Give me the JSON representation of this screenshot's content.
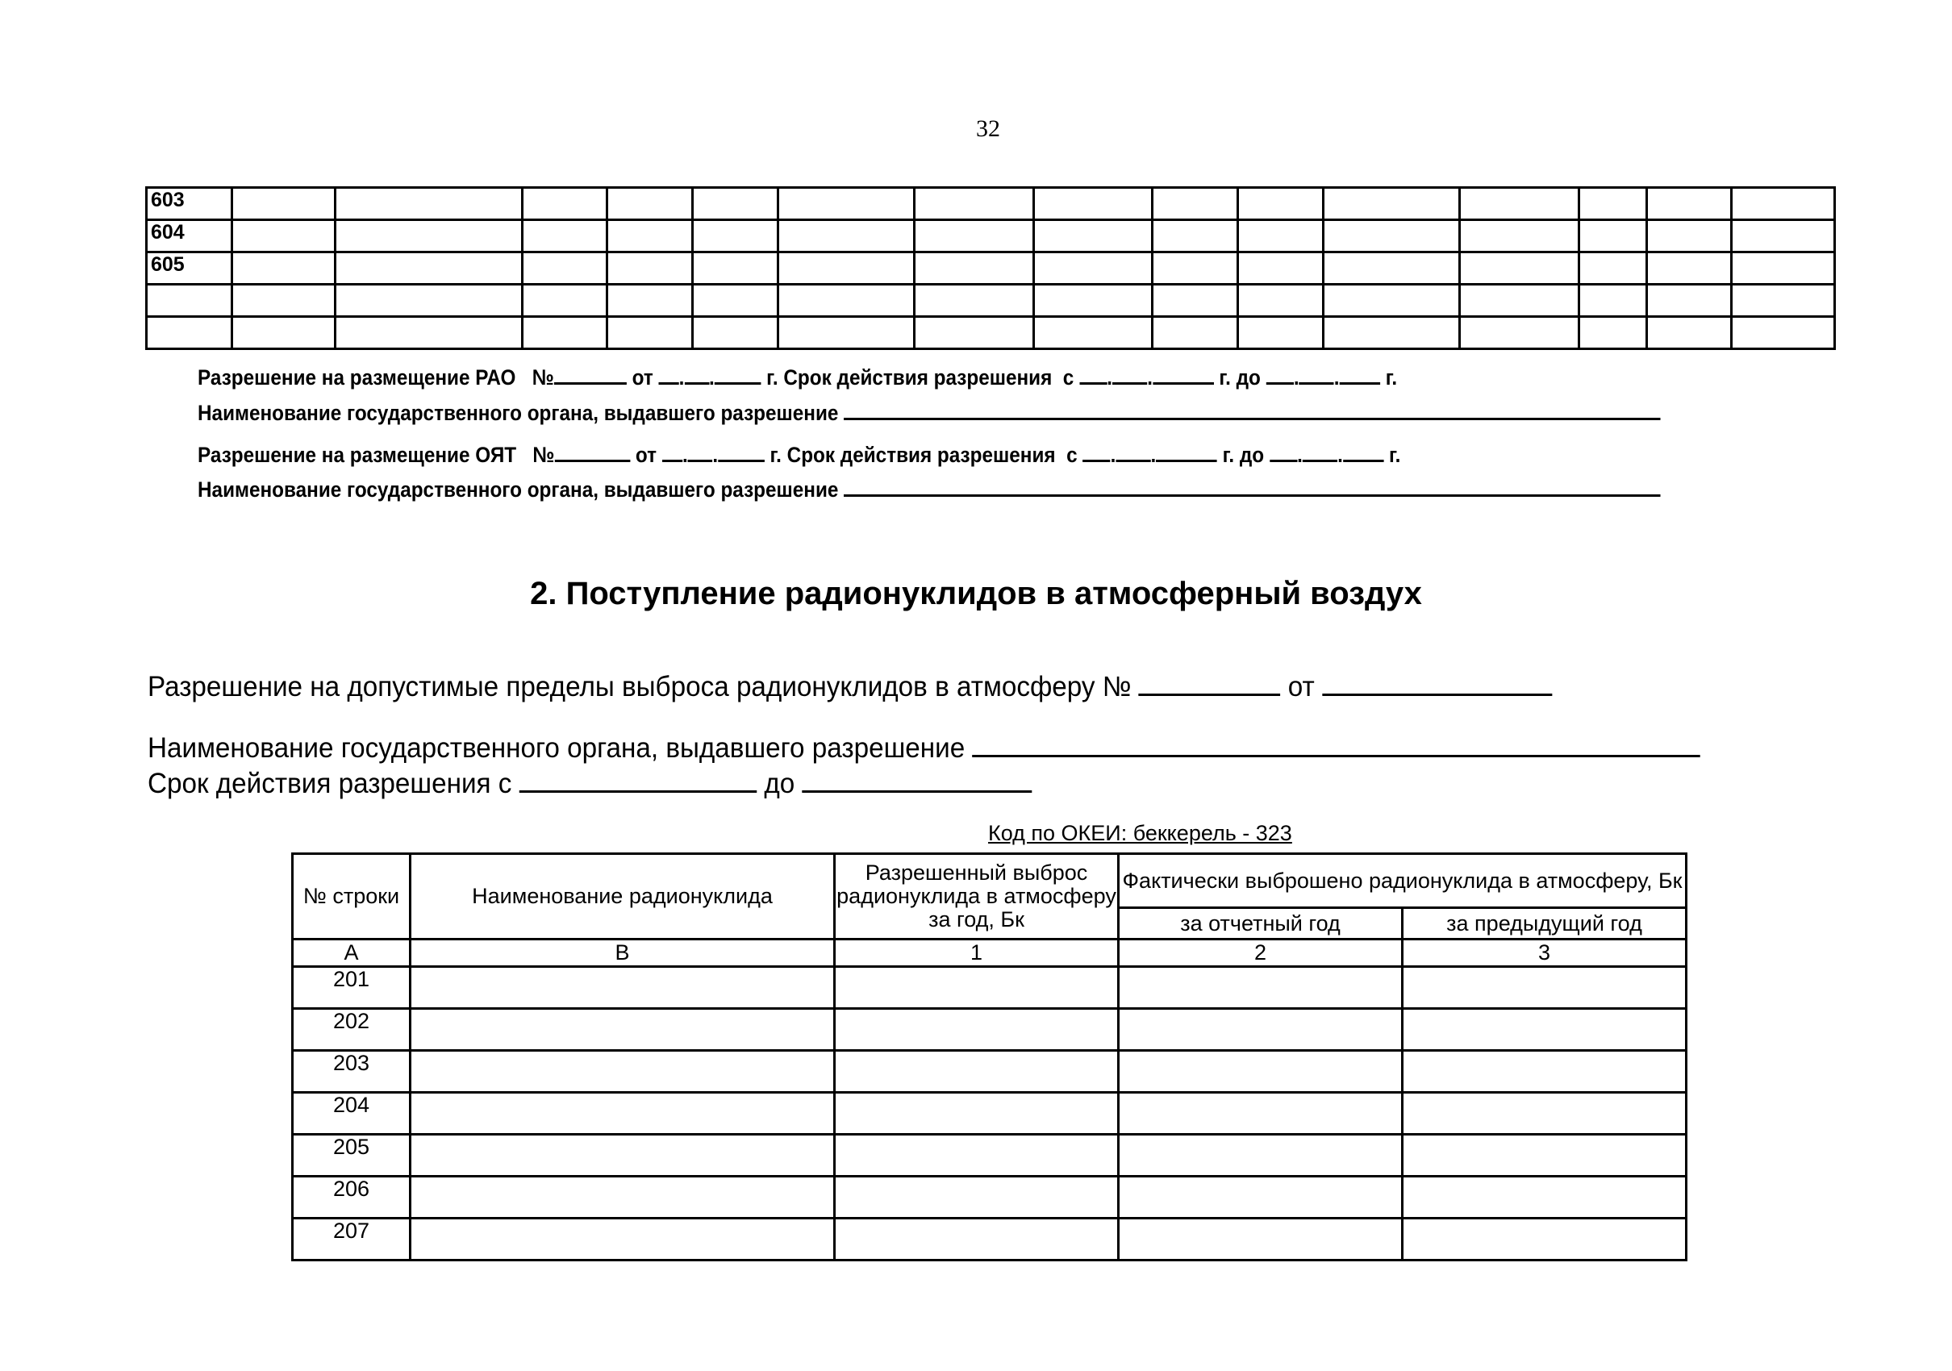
{
  "page_number": "32",
  "top_table": {
    "rows": [
      "603",
      "604",
      "605",
      "",
      ""
    ],
    "column_count": 16
  },
  "permits": [
    {
      "label": "Разрешение на размещение РАО",
      "no": "№",
      "from": "от",
      "year_sep": "г. Срок действия разрешения",
      "from2": "с",
      "until_year": "г. до",
      "end": "г.",
      "authority": "Наименование государственного органа, выдавшего разрешение"
    },
    {
      "label": "Разрешение на размещение ОЯТ",
      "no": "№",
      "from": "от",
      "year_sep": "г. Срок действия разрешения",
      "from2": "с",
      "until_year": "г. до",
      "end": "г.",
      "authority": "Наименование государственного органа, выдавшего разрешение"
    }
  ],
  "section_title": "2. Поступление радионуклидов в атмосферный воздух",
  "emission_permit": {
    "label": "Разрешение на допустимые пределы выброса радионуклидов в атмосферу №",
    "from": "от",
    "authority": "Наименование государственного органа, выдавшего разрешение",
    "validity": "Срок действия разрешения с",
    "until": "до"
  },
  "okei": "Код по ОКЕИ: беккерель - 323",
  "main_table": {
    "headers": {
      "row_no": "№ строки",
      "name": "Наименование радионуклида",
      "allowed": "Разрешенный выброс радионуклида в атмосферу за год, Бк",
      "actual": "Фактически выброшено радионуклида в атмосферу, Бк",
      "current": "за отчетный год",
      "previous": "за предыдущий год"
    },
    "codes": [
      "А",
      "В",
      "1",
      "2",
      "3"
    ],
    "rows": [
      "201",
      "202",
      "203",
      "204",
      "205",
      "206",
      "207"
    ]
  }
}
